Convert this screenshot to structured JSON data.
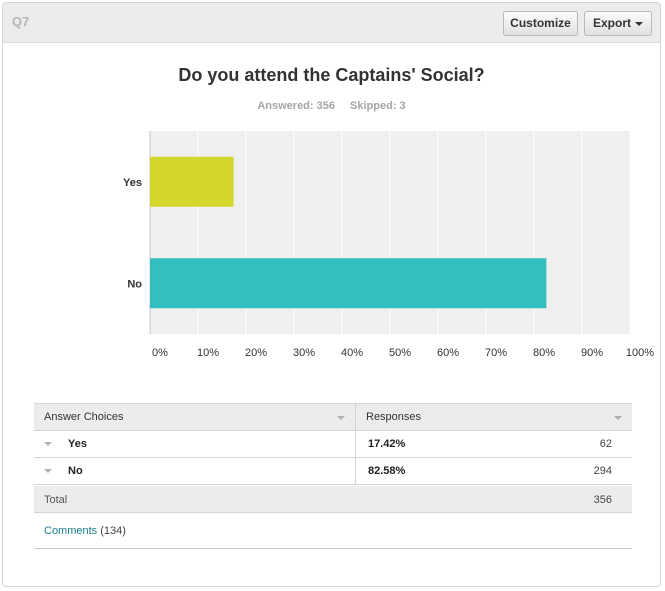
{
  "question": {
    "number": "Q7",
    "title": "Do you attend the Captains' Social?",
    "answered": "Answered: 356",
    "skipped": "Skipped: 3"
  },
  "toolbar": {
    "customize_label": "Customize",
    "export_label": "Export"
  },
  "chart_data": {
    "type": "bar",
    "orientation": "horizontal",
    "title": "Do you attend the Captains' Social?",
    "categories": [
      "Yes",
      "No"
    ],
    "values": [
      17.42,
      82.58
    ],
    "xlim": [
      0,
      100
    ],
    "ticks": [
      "0%",
      "10%",
      "20%",
      "30%",
      "40%",
      "50%",
      "60%",
      "70%",
      "80%",
      "90%",
      "100%"
    ],
    "grid": true,
    "colors": [
      "#d3d62b",
      "#33bfc0"
    ]
  },
  "table": {
    "headers": [
      "Answer Choices",
      "Responses"
    ],
    "rows": [
      {
        "choice": "Yes",
        "percent": "17.42%",
        "count": "62"
      },
      {
        "choice": "No",
        "percent": "82.58%",
        "count": "294"
      }
    ],
    "total_label": "Total",
    "total_count": "356"
  },
  "comments": {
    "label": "Comments",
    "count": "(134)"
  }
}
